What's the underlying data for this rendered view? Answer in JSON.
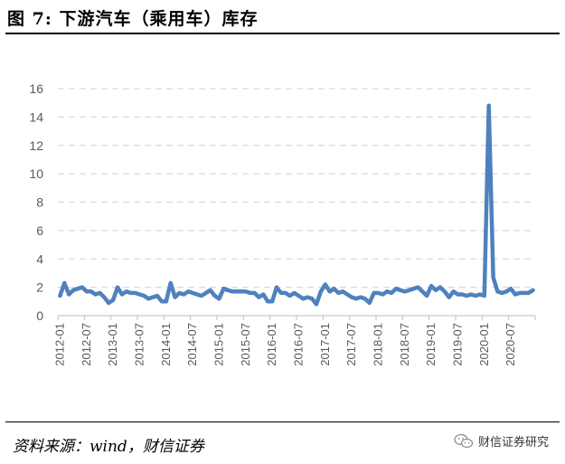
{
  "header": {
    "title": "图 7:  下游汽车（乘用车）库存"
  },
  "footer": {
    "source": "资料来源：wind，财信证券",
    "watermark": "财信证券研究"
  },
  "chart_data": {
    "type": "line",
    "title": "",
    "xlabel": "",
    "ylabel": "",
    "ylim": [
      0,
      16
    ],
    "yticks": [
      0,
      2,
      4,
      6,
      8,
      10,
      12,
      14,
      16
    ],
    "grid": true,
    "legend": "none",
    "color": "#4f81bd",
    "x_start": "2012-01",
    "xtick_labels": [
      "2012-01",
      "2012-07",
      "2013-01",
      "2013-07",
      "2014-01",
      "2014-07",
      "2015-01",
      "2015-07",
      "2016-01",
      "2016-07",
      "2017-01",
      "2017-07",
      "2018-01",
      "2018-07",
      "2019-01",
      "2019-07",
      "2020-01",
      "2020-07"
    ],
    "series": [
      {
        "values": [
          1.4,
          2.3,
          1.5,
          1.8,
          1.9,
          2.0,
          1.7,
          1.7,
          1.5,
          1.6,
          1.3,
          0.9,
          1.1,
          2.0,
          1.5,
          1.7,
          1.6,
          1.6,
          1.5,
          1.4,
          1.2,
          1.3,
          1.4,
          1.0,
          1.0,
          2.3,
          1.3,
          1.6,
          1.5,
          1.7,
          1.6,
          1.5,
          1.4,
          1.6,
          1.8,
          1.4,
          1.2,
          1.9,
          1.8,
          1.7,
          1.7,
          1.7,
          1.7,
          1.6,
          1.6,
          1.3,
          1.5,
          1.0,
          1.0,
          2.0,
          1.6,
          1.6,
          1.4,
          1.6,
          1.4,
          1.2,
          1.3,
          1.2,
          0.8,
          1.7,
          2.2,
          1.7,
          1.9,
          1.6,
          1.7,
          1.5,
          1.3,
          1.2,
          1.3,
          1.2,
          0.9,
          1.6,
          1.6,
          1.5,
          1.7,
          1.6,
          1.9,
          1.8,
          1.7,
          1.8,
          1.9,
          2.0,
          1.7,
          1.4,
          2.1,
          1.8,
          2.0,
          1.7,
          1.3,
          1.7,
          1.5,
          1.5,
          1.4,
          1.5,
          1.4,
          1.5,
          1.4,
          14.8,
          2.7,
          1.7,
          1.6,
          1.7,
          1.9,
          1.5,
          1.6,
          1.6,
          1.6,
          1.8
        ]
      }
    ]
  }
}
